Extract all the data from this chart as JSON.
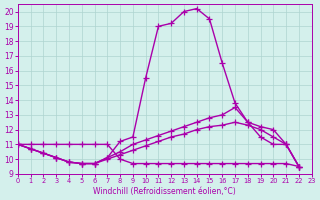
{
  "xlabel": "Windchill (Refroidissement éolien,°C)",
  "xlim": [
    0,
    23
  ],
  "ylim": [
    9,
    20.5
  ],
  "xticks": [
    0,
    1,
    2,
    3,
    4,
    5,
    6,
    7,
    8,
    9,
    10,
    11,
    12,
    13,
    14,
    15,
    16,
    17,
    18,
    19,
    20,
    21,
    22,
    23
  ],
  "yticks": [
    9,
    10,
    11,
    12,
    13,
    14,
    15,
    16,
    17,
    18,
    19,
    20
  ],
  "bg_color": "#d4f0ec",
  "grid_color": "#aed4d0",
  "line_color": "#aa00aa",
  "line_width": 1.0,
  "marker": "+",
  "marker_size": 4,
  "curve1": [
    11.0,
    10.7,
    10.4,
    10.1,
    9.8,
    9.7,
    9.7,
    10.1,
    11.2,
    11.5,
    15.5,
    19.0,
    19.2,
    20.0,
    20.2,
    19.5,
    16.5,
    13.8,
    12.5,
    11.5,
    11.0,
    11.0,
    9.5
  ],
  "curve2": [
    11.0,
    10.7,
    10.4,
    10.1,
    9.8,
    9.7,
    9.7,
    10.1,
    10.5,
    11.0,
    11.3,
    11.6,
    11.9,
    12.2,
    12.5,
    12.8,
    13.0,
    13.5,
    12.5,
    12.2,
    12.0,
    11.0,
    9.5
  ],
  "curve3": [
    11.0,
    10.7,
    10.4,
    10.1,
    9.8,
    9.7,
    9.7,
    10.0,
    10.3,
    10.6,
    10.9,
    11.2,
    11.5,
    11.7,
    12.0,
    12.2,
    12.3,
    12.5,
    12.3,
    12.0,
    11.5,
    11.0,
    9.5
  ],
  "curve4": [
    11.0,
    11.0,
    11.0,
    11.0,
    11.0,
    11.0,
    11.0,
    11.0,
    10.0,
    9.7,
    9.7,
    9.7,
    9.7,
    9.7,
    9.7,
    9.7,
    9.7,
    9.7,
    9.7,
    9.7,
    9.7,
    9.7,
    9.5
  ]
}
